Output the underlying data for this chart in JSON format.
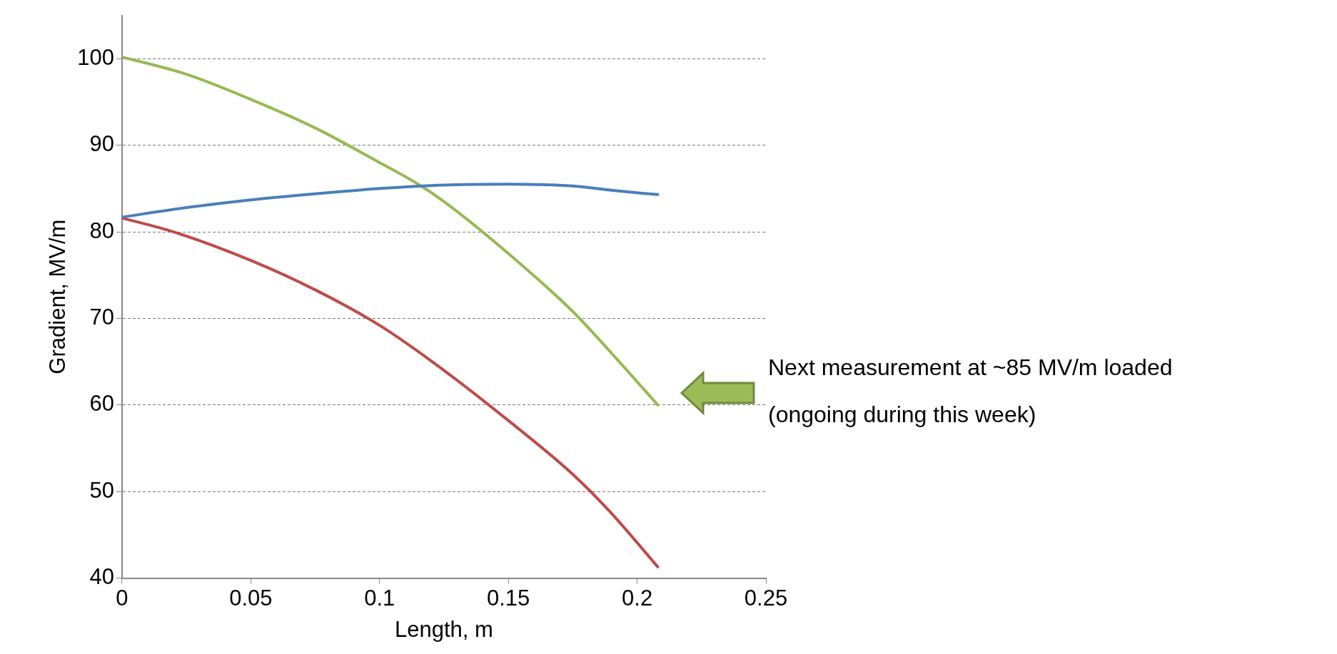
{
  "chart_data": {
    "type": "line",
    "xlabel": "Length, m",
    "ylabel": "Gradient, MV/m",
    "xlim": [
      0,
      0.25
    ],
    "xticks": [
      0,
      0.05,
      0.1,
      0.15,
      0.2,
      0.25
    ],
    "ylim": [
      40,
      105
    ],
    "yticks": [
      40,
      50,
      60,
      70,
      80,
      90,
      100
    ],
    "grid": "y",
    "legend": false,
    "marker": "none",
    "line_style": "solid",
    "series": [
      {
        "color": "#4a7ebb",
        "x": [
          0,
          0.025,
          0.05,
          0.075,
          0.1,
          0.125,
          0.15,
          0.175,
          0.19,
          0.208
        ],
        "values": [
          81.7,
          82.8,
          83.7,
          84.4,
          85.0,
          85.4,
          85.5,
          85.3,
          84.8,
          84.3
        ]
      },
      {
        "color": "#98b954",
        "x": [
          0,
          0.025,
          0.05,
          0.075,
          0.1,
          0.115,
          0.125,
          0.15,
          0.175,
          0.19,
          0.208
        ],
        "values": [
          100.2,
          98.2,
          95.3,
          92.0,
          88.0,
          85.5,
          83.5,
          77.5,
          70.8,
          66.0,
          60.0
        ]
      },
      {
        "color": "#be4b48",
        "x": [
          0,
          0.02,
          0.05,
          0.075,
          0.1,
          0.125,
          0.15,
          0.175,
          0.19,
          0.208
        ],
        "values": [
          81.6,
          80.0,
          76.7,
          73.3,
          69.2,
          64.0,
          58.2,
          52.0,
          47.5,
          41.3
        ]
      }
    ],
    "annotations": [
      "Next measurement at ~85 MV/m loaded",
      "(ongoing during this week)"
    ]
  }
}
